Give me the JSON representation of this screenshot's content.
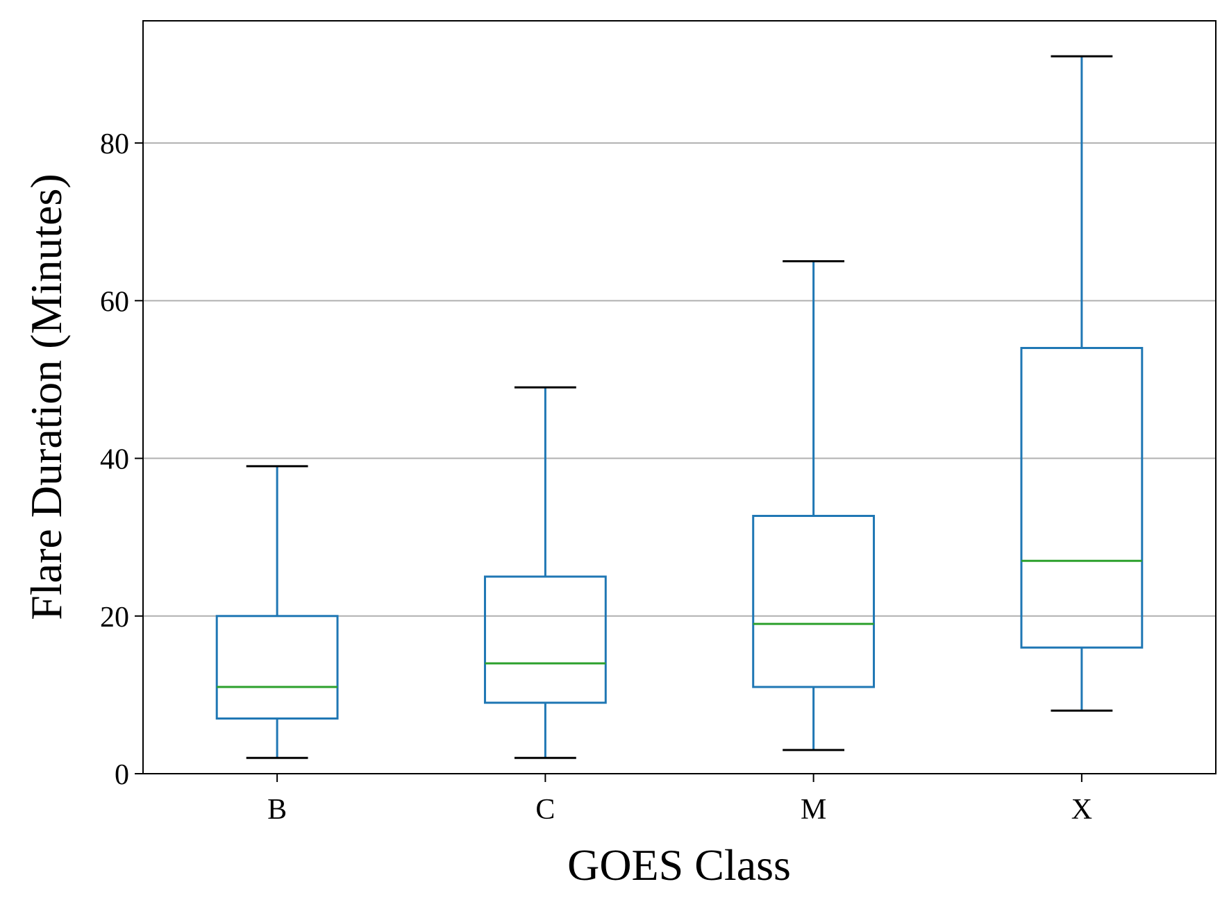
{
  "chart_data": {
    "type": "box",
    "title": "",
    "xlabel": "GOES Class",
    "ylabel": "Flare Duration (Minutes)",
    "categories": [
      "B",
      "C",
      "M",
      "X"
    ],
    "ylim": [
      0,
      95.5
    ],
    "yticks": [
      0,
      20,
      40,
      60,
      80
    ],
    "grid": "y",
    "boxes": [
      {
        "category": "B",
        "whisker_low": 2,
        "q1": 7,
        "median": 11,
        "q3": 20,
        "whisker_high": 39
      },
      {
        "category": "C",
        "whisker_low": 2,
        "q1": 9,
        "median": 14,
        "q3": 25,
        "whisker_high": 49
      },
      {
        "category": "M",
        "whisker_low": 3,
        "q1": 11,
        "median": 19,
        "q3": 32.7,
        "whisker_high": 65
      },
      {
        "category": "X",
        "whisker_low": 8,
        "q1": 16,
        "median": 27,
        "q3": 54,
        "whisker_high": 91
      }
    ],
    "colors": {
      "box": "#1f77b4",
      "median": "#2ca02c",
      "cap": "#000000",
      "grid": "#b0b0b0"
    }
  }
}
